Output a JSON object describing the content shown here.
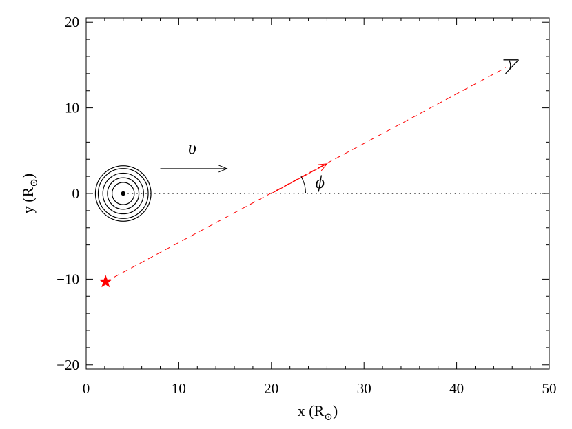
{
  "chart_data": {
    "type": "diagram",
    "title": "",
    "xlabel": "x (R",
    "xlabel_sub": "⊙",
    "xlabel_close": ")",
    "ylabel": "y (R",
    "ylabel_sub": "⊙",
    "ylabel_close": ")",
    "xlim": [
      0,
      50
    ],
    "ylim": [
      -20.5,
      20.5
    ],
    "x_ticks": [
      0,
      10,
      20,
      30,
      40,
      50
    ],
    "x_tick_labels": [
      "0",
      "10",
      "20",
      "30",
      "40",
      "50"
    ],
    "y_ticks": [
      -20,
      -10,
      0,
      10,
      20
    ],
    "y_tick_labels": [
      "−20",
      "−10",
      "0",
      "10",
      "20"
    ],
    "x_minor_step": 2,
    "y_minor_step": 2,
    "horizontal_reference": {
      "y": 0,
      "style": "dotted"
    },
    "lens": {
      "x": 4,
      "y": 0,
      "ring_radii": [
        1.2,
        1.7,
        2.2,
        2.7,
        3.0
      ]
    },
    "source_star": {
      "x": 2.1,
      "y": -10.3,
      "color": "#ff0000"
    },
    "sight_line": {
      "x": [
        2.1,
        45.3
      ],
      "y": [
        -10.3,
        14.7
      ],
      "style": "dashed",
      "color": "#ff0000"
    },
    "direction_arrow": {
      "x": [
        20,
        26
      ],
      "y": [
        0,
        3.47
      ]
    },
    "velocity_arrow": {
      "x": [
        8,
        15.2
      ],
      "y": [
        2.9,
        2.9
      ]
    },
    "labels": {
      "velocity": "υ",
      "angle": "ϕ"
    },
    "angle_arc": {
      "center_x": 20,
      "center_y": 0,
      "radius": 3.7
    },
    "observer_eye": {
      "x": 45.5,
      "y": 14.8
    }
  }
}
